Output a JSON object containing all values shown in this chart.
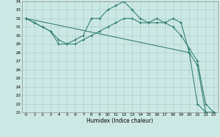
{
  "xlabel": "Humidex (Indice chaleur)",
  "bg_color": "#cce8e4",
  "line_color": "#2e7d6e",
  "grid_color": "#aaccc8",
  "ylim": [
    21,
    34
  ],
  "xlim": [
    -0.5,
    23.5
  ],
  "yticks": [
    21,
    22,
    23,
    24,
    25,
    26,
    27,
    28,
    29,
    30,
    31,
    32,
    33,
    34
  ],
  "xticks": [
    0,
    1,
    2,
    3,
    4,
    5,
    6,
    7,
    8,
    9,
    10,
    11,
    12,
    13,
    14,
    15,
    16,
    17,
    18,
    19,
    20,
    21,
    22,
    23
  ],
  "series1": {
    "x": [
      0,
      1,
      2,
      3,
      4,
      5,
      6,
      7,
      8,
      9,
      10,
      11,
      12,
      13,
      14,
      15,
      16,
      17,
      18,
      19,
      20,
      21,
      22,
      23
    ],
    "y": [
      32,
      31.5,
      31,
      30.5,
      29,
      29,
      29.5,
      30,
      32,
      32,
      33,
      33.5,
      34,
      33,
      32,
      31.5,
      31.5,
      31.5,
      32,
      31.5,
      28,
      26.5,
      21,
      21
    ]
  },
  "series2": {
    "x": [
      0,
      1,
      2,
      3,
      4,
      5,
      6,
      7,
      8,
      9,
      10,
      11,
      12,
      13,
      14,
      15,
      16,
      17,
      18,
      19,
      20,
      21,
      22,
      23
    ],
    "y": [
      32,
      31.5,
      31,
      30.5,
      29.5,
      29,
      29,
      29.5,
      30,
      30.5,
      31,
      31.5,
      32,
      32,
      31.5,
      31.5,
      32,
      31.5,
      31,
      30,
      28.5,
      27,
      22,
      21
    ]
  },
  "series3": {
    "x": [
      0,
      20,
      21,
      22,
      23
    ],
    "y": [
      32,
      28,
      22,
      21,
      21
    ]
  }
}
